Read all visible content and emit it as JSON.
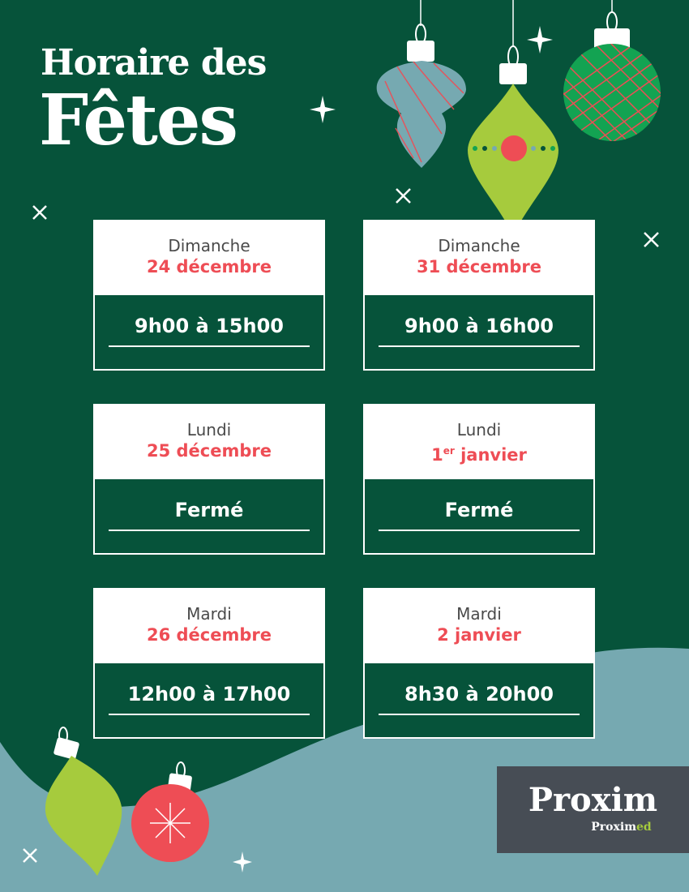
{
  "title": {
    "line1": "Horaire des",
    "line2": "Fêtes"
  },
  "colors": {
    "background": "#06533a",
    "accent_red": "#ee4d55",
    "teal": "#76a9b1",
    "lime": "#a6cb3d",
    "green": "#13a352",
    "logo_bg": "#474d55"
  },
  "cards": [
    {
      "day": "Dimanche",
      "date": "24 décembre",
      "hours": "9h00 à 15h00"
    },
    {
      "day": "Dimanche",
      "date": "31 décembre",
      "hours": "9h00 à 16h00"
    },
    {
      "day": "Lundi",
      "date": "25 décembre",
      "hours": "Fermé"
    },
    {
      "day": "Lundi",
      "date_num": "1",
      "date_sup": "er",
      "date_rest": " janvier",
      "hours": "Fermé"
    },
    {
      "day": "Mardi",
      "date": "26 décembre",
      "hours": "12h00 à 17h00"
    },
    {
      "day": "Mardi",
      "date": "2 janvier",
      "hours": "8h30 à 20h00"
    }
  ],
  "logo": {
    "brand": "Proxim",
    "sub_a": "Proxim",
    "sub_b": "ed"
  }
}
